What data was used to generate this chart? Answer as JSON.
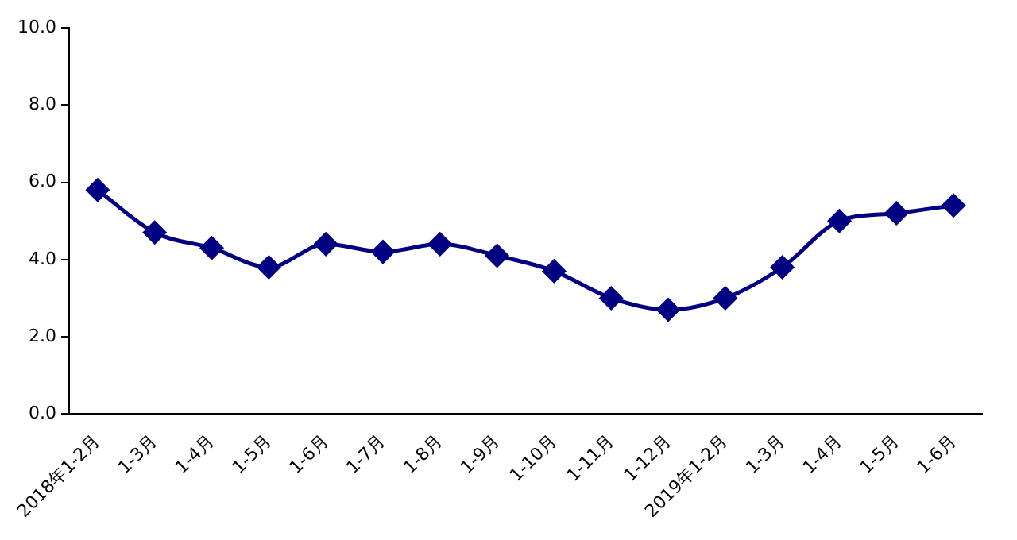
{
  "chart_data": {
    "type": "line",
    "categories": [
      "2018年1-2月",
      "1-3月",
      "1-4月",
      "1-5月",
      "1-6月",
      "1-7月",
      "1-8月",
      "1-9月",
      "1-10月",
      "1-11月",
      "1-12月",
      "2019年1-2月",
      "1-3月",
      "1-4月",
      "1-5月",
      "1-6月"
    ],
    "series": [
      {
        "color": "#000080",
        "values": [
          5.8,
          4.7,
          4.3,
          3.8,
          4.4,
          4.2,
          4.4,
          4.1,
          3.7,
          3.0,
          2.7,
          3.0,
          3.8,
          5.0,
          5.2,
          5.4
        ]
      }
    ],
    "ylim": [
      0,
      10
    ],
    "yticks": [
      {
        "value": 0,
        "label": "0.0"
      },
      {
        "value": 2,
        "label": "2.0"
      },
      {
        "value": 4,
        "label": "4.0"
      },
      {
        "value": 6,
        "label": "6.0"
      },
      {
        "value": 8,
        "label": "8.0"
      },
      {
        "value": 10,
        "label": "10.0"
      }
    ],
    "grid": false,
    "legend": false,
    "marker": "diamond",
    "line_style": "solid"
  }
}
